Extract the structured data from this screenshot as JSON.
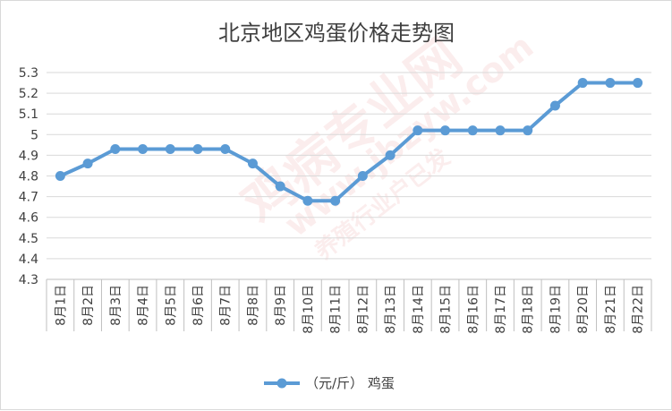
{
  "chart_data": {
    "type": "line",
    "title": "北京地区鸡蛋价格走势图",
    "categories": [
      "8月1日",
      "8月2日",
      "8月3日",
      "8月4日",
      "8月5日",
      "8月6日",
      "8月7日",
      "8月8日",
      "8月9日",
      "8月10日",
      "8月11日",
      "8月12日",
      "8月13日",
      "8月14日",
      "8月15日",
      "8月16日",
      "8月17日",
      "8月18日",
      "8月19日",
      "8月20日",
      "8月21日",
      "8月22日"
    ],
    "series": [
      {
        "name": "（元/斤） 鸡蛋",
        "values": [
          4.8,
          4.86,
          4.93,
          4.93,
          4.93,
          4.93,
          4.93,
          4.86,
          4.75,
          4.68,
          4.68,
          4.8,
          4.9,
          5.02,
          5.02,
          5.02,
          5.02,
          5.02,
          5.14,
          5.25,
          5.25,
          5.25
        ],
        "color": "#5b9bd5"
      }
    ],
    "ylim": [
      4.3,
      5.3
    ],
    "yticks": [
      "4.3",
      "4.4",
      "4.5",
      "4.6",
      "4.7",
      "4.8",
      "4.9",
      "5",
      "5.1",
      "5.2",
      "5.3"
    ],
    "grid": true,
    "legend": "bottom"
  },
  "watermark": {
    "main": "鸡病专业网",
    "url": "www.jbzyw.com",
    "sub": "养殖行业户已发"
  }
}
